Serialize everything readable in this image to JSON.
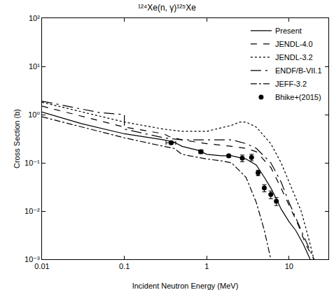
{
  "chart_data": {
    "type": "line",
    "title": "¹²⁴Xe(n, γ)¹²⁵Xe",
    "x_label": "Incident Neutron Energy (MeV)",
    "y_label": "Cross Section (b)",
    "log": true,
    "grid": false,
    "legend": "top-right",
    "xlim": [
      0.01,
      30
    ],
    "ylim": [
      0.001,
      100
    ],
    "xticks": [
      0.01,
      0.1,
      1,
      10
    ],
    "yticks": [
      {
        "value": 0.001,
        "label": "10⁻³"
      },
      {
        "value": 0.01,
        "label": "10⁻²"
      },
      {
        "value": 0.1,
        "label": "10⁻¹"
      },
      {
        "value": 1,
        "label": "10⁰"
      },
      {
        "value": 10,
        "label": "10¹"
      },
      {
        "value": 100,
        "label": "10²"
      }
    ],
    "series": [
      {
        "name": "Present",
        "type": "line",
        "color": "#000000",
        "line_style": "solid",
        "x": [
          0.01,
          0.03,
          0.1,
          0.3,
          0.4,
          0.5,
          0.8,
          1,
          1.5,
          2,
          3,
          4,
          5,
          6,
          7,
          8,
          10,
          12,
          15,
          18
        ],
        "values": [
          1.13,
          0.65,
          0.4,
          0.3,
          0.27,
          0.22,
          0.18,
          0.15,
          0.14,
          0.14,
          0.12,
          0.09,
          0.05,
          0.03,
          0.018,
          0.011,
          0.006,
          0.004,
          0.002,
          0.001
        ]
      },
      {
        "name": "JENDL-4.0",
        "type": "line",
        "color": "#000000",
        "line_style": "dash",
        "x": [
          0.01,
          0.1,
          0.3,
          0.35,
          0.5,
          1,
          2,
          3,
          4,
          6,
          8,
          10,
          13,
          16,
          20
        ],
        "values": [
          1.5,
          0.55,
          0.4,
          0.35,
          0.3,
          0.25,
          0.22,
          0.2,
          0.17,
          0.08,
          0.03,
          0.013,
          0.005,
          0.002,
          0.001
        ]
      },
      {
        "name": "JENDL-3.2",
        "type": "line",
        "color": "#000000",
        "line_style": "dot",
        "x": [
          0.01,
          0.1,
          0.3,
          0.5,
          1,
          2,
          2.5,
          3,
          4,
          6,
          8,
          10,
          14,
          17,
          20
        ],
        "values": [
          1.8,
          0.7,
          0.5,
          0.45,
          0.45,
          0.6,
          0.7,
          0.7,
          0.55,
          0.25,
          0.1,
          0.04,
          0.01,
          0.003,
          0.001
        ]
      },
      {
        "name": "ENDF/B-VII.1",
        "type": "line",
        "color": "#000000",
        "line_style": "longdashdot",
        "x": [
          0.01,
          0.05,
          0.1,
          0.1,
          0.3,
          0.5,
          1,
          2,
          3,
          4,
          6,
          8,
          10,
          14,
          18,
          20
        ],
        "values": [
          1.9,
          1.1,
          1.0,
          0.5,
          0.33,
          0.3,
          0.3,
          0.3,
          0.25,
          0.2,
          0.1,
          0.04,
          0.015,
          0.004,
          0.0015,
          0.001
        ]
      },
      {
        "name": "JEFF-3.2",
        "type": "line",
        "color": "#000000",
        "line_style": "dashdot",
        "x": [
          0.01,
          0.1,
          0.3,
          0.4,
          0.5,
          1,
          1.5,
          2,
          3,
          4,
          5,
          6
        ],
        "values": [
          0.9,
          0.33,
          0.22,
          0.2,
          0.15,
          0.12,
          0.11,
          0.1,
          0.05,
          0.015,
          0.004,
          0.001
        ]
      },
      {
        "name": "Bhike+(2015)",
        "type": "scatter",
        "color": "#000000",
        "marker": "circle",
        "x": [
          0.37,
          0.85,
          1.85,
          2.7,
          3.5,
          4.2,
          5.0,
          6.0,
          7.0
        ],
        "values": [
          0.26,
          0.17,
          0.14,
          0.125,
          0.13,
          0.062,
          0.03,
          0.022,
          0.016
        ],
        "x_error": [
          0.05,
          0.05,
          0.05,
          0.05,
          0.05,
          0.1,
          0.1,
          0.1,
          0.2
        ],
        "y_error": [
          0.02,
          0.015,
          0.01,
          0.02,
          0.02,
          0.008,
          0.005,
          0.004,
          0.003
        ]
      }
    ]
  }
}
